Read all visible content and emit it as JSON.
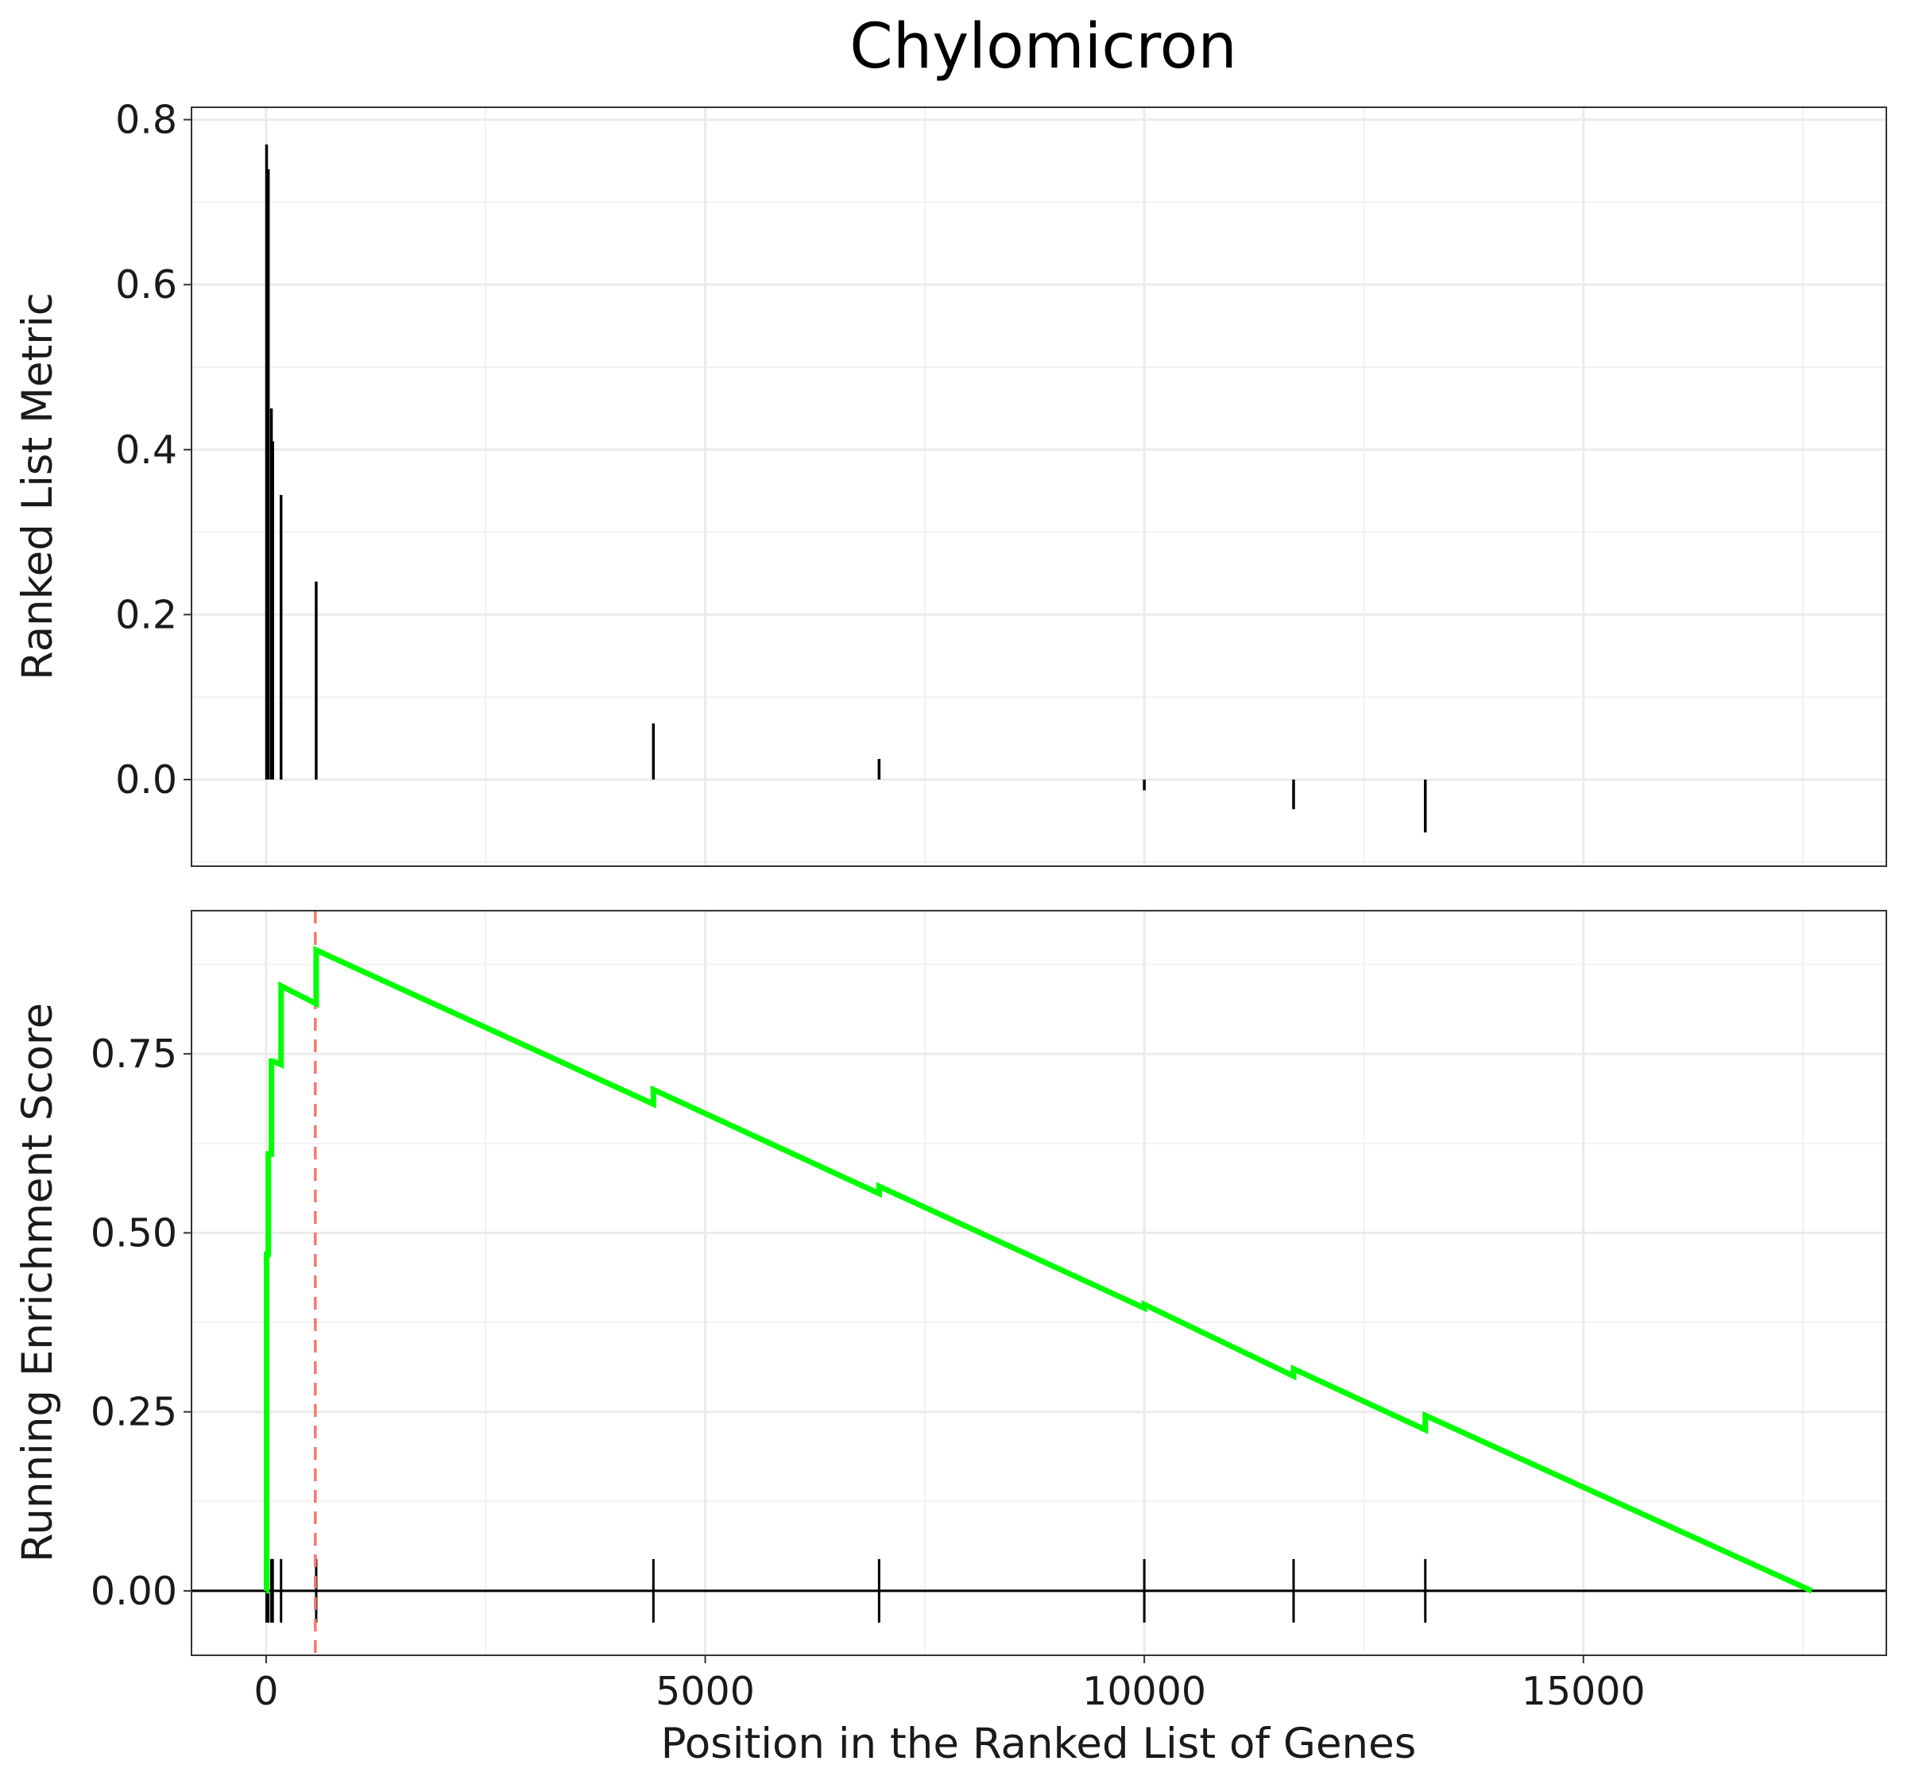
{
  "chart_data": {
    "type": "line",
    "title": "Chylomicron",
    "xlabel": "Position in the Ranked List of Genes",
    "xlim": [
      -850,
      18450
    ],
    "x_ticks": [
      0,
      5000,
      10000,
      15000
    ],
    "x_tick_labels": [
      "0",
      "5000",
      "10000",
      "15000"
    ],
    "grid": true,
    "top_panel": {
      "type": "bar",
      "ylabel": "Ranked List Metric",
      "ylim": [
        -0.105,
        0.815
      ],
      "y_ticks": [
        0.0,
        0.2,
        0.4,
        0.6,
        0.8
      ],
      "y_tick_labels": [
        "0.0",
        "0.2",
        "0.4",
        "0.6",
        "0.8"
      ],
      "x": [
        5,
        25,
        60,
        75,
        170,
        570,
        4410,
        6980,
        10000,
        11700,
        13200
      ],
      "values": [
        0.77,
        0.74,
        0.45,
        0.41,
        0.345,
        0.24,
        0.068,
        0.025,
        -0.013,
        -0.036,
        -0.064
      ]
    },
    "bottom_panel": {
      "type": "line",
      "ylabel": "Running Enrichment Score",
      "ylim": [
        -0.09,
        0.95
      ],
      "y_ticks": [
        0.0,
        0.25,
        0.5,
        0.75
      ],
      "y_tick_labels": [
        "0.00",
        "0.25",
        "0.50",
        "0.75"
      ],
      "line_color": "#00ff00",
      "max_position": 560,
      "max_marker_color": "#f8766d",
      "gene_hits": [
        5,
        25,
        60,
        75,
        170,
        570,
        4410,
        6980,
        10000,
        11700,
        13200
      ],
      "series": [
        {
          "x": [
            0,
            5,
            5,
            25,
            25,
            60,
            60,
            75,
            75,
            170,
            170,
            570,
            570,
            4410,
            4410,
            6980,
            6980,
            10000,
            10000,
            11700,
            11700,
            13200,
            13200,
            17600
          ],
          "values": [
            0.0,
            0.0,
            0.47,
            0.47,
            0.61,
            0.61,
            0.74,
            0.74,
            0.74,
            0.735,
            0.845,
            0.82,
            0.895,
            0.68,
            0.7,
            0.555,
            0.565,
            0.395,
            0.4,
            0.3,
            0.31,
            0.225,
            0.245,
            0.0
          ]
        }
      ]
    }
  }
}
